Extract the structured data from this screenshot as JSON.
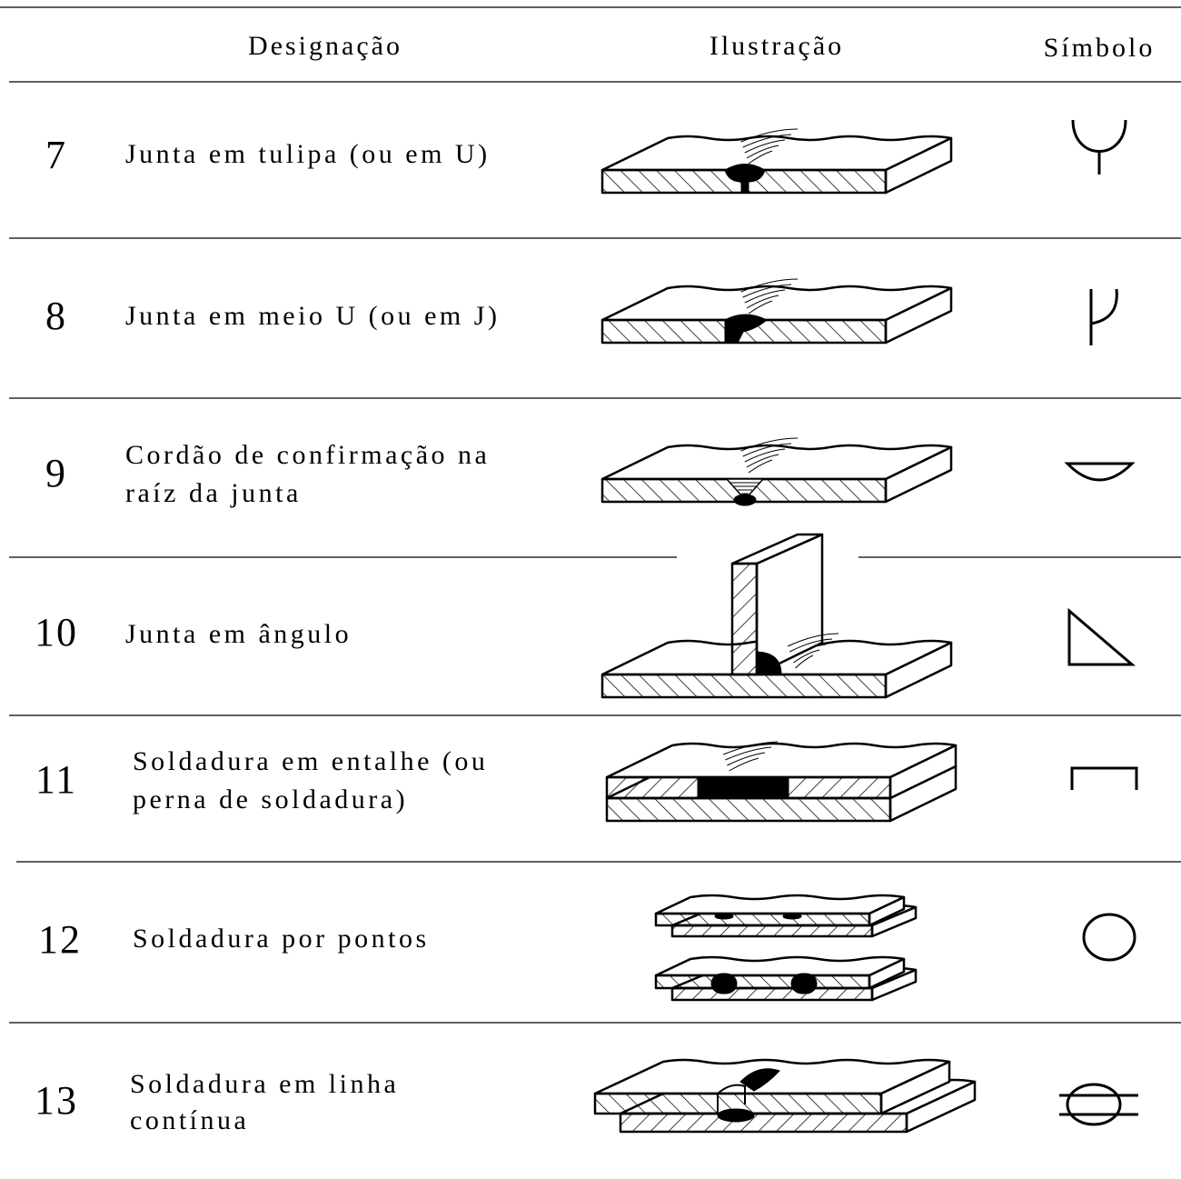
{
  "table": {
    "headers": [
      "Designação",
      "Ilustração",
      "Símbolo"
    ],
    "rows": [
      {
        "number": "7",
        "designation": [
          "Junta em tulipa (ou em U)"
        ]
      },
      {
        "number": "8",
        "designation": [
          "Junta em meio U (ou em J)"
        ]
      },
      {
        "number": "9",
        "designation": [
          "Cordão de confirmação na",
          "raíz da junta"
        ]
      },
      {
        "number": "10",
        "designation": [
          "Junta em ângulo"
        ]
      },
      {
        "number": "11",
        "designation": [
          "Soldadura em entalhe (ou",
          "perna de soldadura)"
        ]
      },
      {
        "number": "12",
        "designation": [
          "Soldadura por pontos"
        ]
      },
      {
        "number": "13",
        "designation": [
          "Soldadura em linha",
          "contínua"
        ]
      }
    ]
  }
}
